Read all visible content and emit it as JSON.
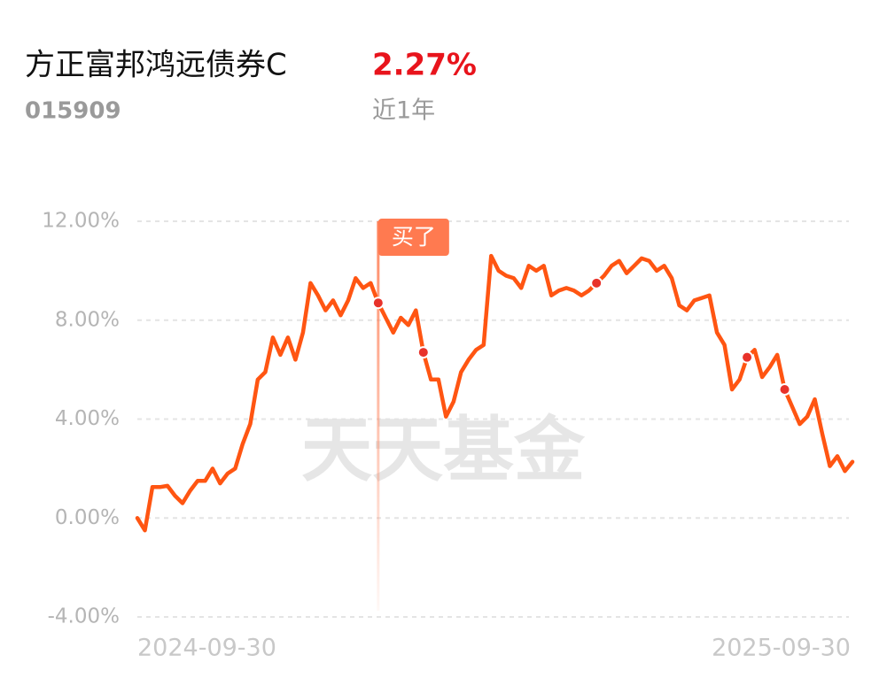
{
  "header": {
    "title": "方正富邦鸿远债券C",
    "return": "2.27%",
    "code": "015909",
    "period": "近1年"
  },
  "chart_data": {
    "type": "line",
    "categories": [
      "2024-09-30",
      null,
      null,
      null,
      null,
      null,
      null,
      null,
      null,
      null,
      null,
      null,
      null,
      null,
      null,
      null,
      null,
      null,
      null,
      null,
      null,
      null,
      null,
      null,
      null,
      null,
      null,
      null,
      null,
      null,
      null,
      null,
      null,
      null,
      null,
      null,
      null,
      null,
      null,
      null,
      null,
      null,
      null,
      null,
      null,
      null,
      null,
      null,
      null,
      null,
      null,
      null,
      null,
      null,
      null,
      null,
      null,
      null,
      null,
      null,
      null,
      null,
      null,
      null,
      null,
      null,
      null,
      null,
      null,
      null,
      null,
      null,
      null,
      null,
      null,
      null,
      null,
      null,
      null,
      null,
      null,
      null,
      null,
      null,
      null,
      null,
      null,
      null,
      null,
      null,
      null,
      null,
      null,
      null,
      null,
      "2025-09-30"
    ],
    "series": [
      {
        "name": "方正富邦鸿远债券C",
        "color": "#ff5512",
        "values": [
          0,
          -0.5,
          1.25,
          1.25,
          1.3,
          0.9,
          0.6,
          1.1,
          1.5,
          1.5,
          2.0,
          1.4,
          1.8,
          2.0,
          3.0,
          3.8,
          5.6,
          5.9,
          7.3,
          6.6,
          7.3,
          6.4,
          7.5,
          9.5,
          9.0,
          8.4,
          8.8,
          8.2,
          8.8,
          9.7,
          9.3,
          9.5,
          8.7,
          8.1,
          7.5,
          8.1,
          7.8,
          8.4,
          6.7,
          5.6,
          5.6,
          4.1,
          4.7,
          5.9,
          6.4,
          6.8,
          7.0,
          10.6,
          10.0,
          9.8,
          9.7,
          9.3,
          10.2,
          10.0,
          10.2,
          9.0,
          9.2,
          9.3,
          9.2,
          9.0,
          9.2,
          9.5,
          9.8,
          10.2,
          10.4,
          9.9,
          10.2,
          10.5,
          10.4,
          10.0,
          10.2,
          9.7,
          8.6,
          8.4,
          8.8,
          8.9,
          9.0,
          7.5,
          7.0,
          5.2,
          5.6,
          6.5,
          6.8,
          5.7,
          6.1,
          6.6,
          5.2,
          4.5,
          3.8,
          4.1,
          4.8,
          3.4,
          2.1,
          2.5,
          1.9,
          2.27
        ]
      }
    ],
    "ylim": [
      -4,
      12
    ],
    "yticks": [
      {
        "value": -4,
        "label": "-4.00%"
      },
      {
        "value": 0,
        "label": "0.00%"
      },
      {
        "value": 4,
        "label": "4.00%"
      },
      {
        "value": 8,
        "label": "8.00%"
      },
      {
        "value": 12,
        "label": "12.00%"
      }
    ],
    "grid": true,
    "annotation": "买了",
    "watermark": "天天基金"
  }
}
